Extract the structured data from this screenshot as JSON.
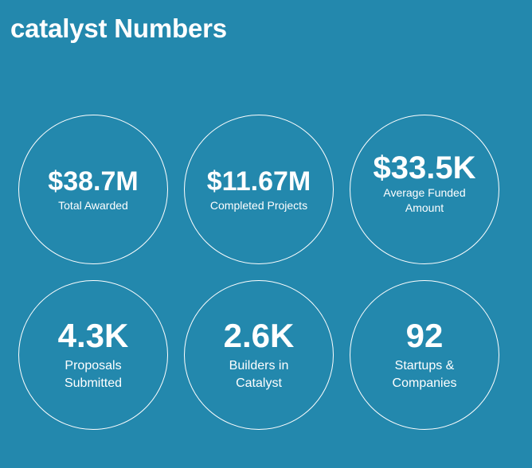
{
  "page": {
    "title": "catalyst Numbers"
  },
  "stats": [
    {
      "value": "$38.7M",
      "label": "Total Awarded"
    },
    {
      "value": "$11.67M",
      "label": "Completed Projects"
    },
    {
      "value": "$33.5K",
      "label": "Average Funded Amount"
    },
    {
      "value": "4.3K",
      "label": "Proposals Submitted"
    },
    {
      "value": "2.6K",
      "label": "Builders in Catalyst"
    },
    {
      "value": "92",
      "label": "Startups & Companies"
    }
  ],
  "colors": {
    "background": "#2388ad",
    "text": "#ffffff",
    "circle_border": "#ffffff"
  }
}
